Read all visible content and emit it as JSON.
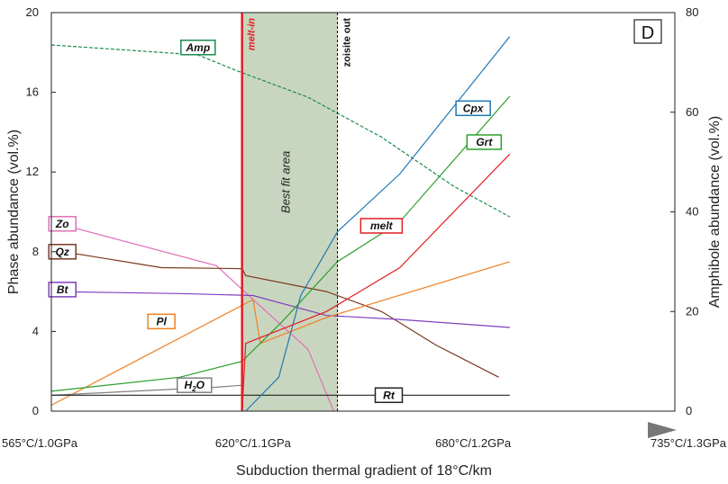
{
  "chart_data": {
    "type": "line",
    "panel_label": "D",
    "xlabel": "Subduction thermal gradient of 18°C/km",
    "x_ticks": [
      "565°C/1.0GPa",
      "620°C/1.1GPa",
      "680°C/1.2GPa",
      "735°C/1.3GPa"
    ],
    "x_tick_temps": [
      565,
      620,
      680,
      735
    ],
    "xlim": [
      565,
      735
    ],
    "ylabel_left": "Phase abundance (vol.%)",
    "ylim_left": [
      0,
      20
    ],
    "yticks_left": [
      0,
      4,
      8,
      12,
      16,
      20
    ],
    "ylabel_right": "Amphibole abundance (vol.%)",
    "ylim_right": [
      0,
      80
    ],
    "yticks_right": [
      0,
      20,
      40,
      60,
      80
    ],
    "annotations": {
      "melt_in": {
        "label": "melt-in",
        "x": 617,
        "color": "#e31e24"
      },
      "zoisite_out": {
        "label": "zoisite out",
        "x": 643
      },
      "best_fit": {
        "label": "Best fit area",
        "x_range": [
          617,
          643
        ],
        "color": "#c9d6bf"
      }
    },
    "series": [
      {
        "name": "Amp",
        "axis": "right",
        "style": "dashed",
        "color": "#1e8a4e",
        "label_at": [
          605,
          73
        ],
        "points": [
          [
            565,
            73.5
          ],
          [
            585,
            72.5
          ],
          [
            605,
            71.5
          ],
          [
            615,
            68.5
          ],
          [
            635,
            63
          ],
          [
            655,
            55
          ],
          [
            675,
            45
          ],
          [
            690,
            39
          ]
        ]
      },
      {
        "name": "Zo",
        "axis": "left",
        "color": "#e070b8",
        "label_at": [
          568,
          9.4
        ],
        "points": [
          [
            565,
            9.5
          ],
          [
            610,
            7.3
          ],
          [
            620,
            5.6
          ],
          [
            635,
            3.1
          ],
          [
            642,
            0
          ]
        ]
      },
      {
        "name": "Qz",
        "axis": "left",
        "color": "#7b3a22",
        "label_at": [
          568,
          8.0
        ],
        "points": [
          [
            565,
            8.1
          ],
          [
            595,
            7.2
          ],
          [
            617,
            7.15
          ],
          [
            618,
            6.8
          ],
          [
            640,
            6.0
          ],
          [
            655,
            5.0
          ],
          [
            670,
            3.3
          ],
          [
            687,
            1.7
          ]
        ]
      },
      {
        "name": "Bt",
        "axis": "left",
        "color": "#7f3fbf",
        "label_at": [
          568,
          6.1
        ],
        "points": [
          [
            565,
            6.0
          ],
          [
            600,
            5.9
          ],
          [
            620,
            5.8
          ],
          [
            640,
            4.8
          ],
          [
            660,
            4.6
          ],
          [
            690,
            4.2
          ]
        ]
      },
      {
        "name": "Pl",
        "axis": "left",
        "color": "#f07f1e",
        "label_at": [
          595,
          4.5
        ],
        "points": [
          [
            565,
            0.3
          ],
          [
            620,
            5.6
          ],
          [
            622,
            3.4
          ],
          [
            640,
            4.7
          ],
          [
            690,
            7.5
          ]
        ]
      },
      {
        "name": "H2O",
        "axis": "left",
        "color": "#808080",
        "label_at": [
          604,
          1.3
        ],
        "points": [
          [
            565,
            0.8
          ],
          [
            610,
            1.2
          ],
          [
            617,
            1.3
          ]
        ]
      },
      {
        "name": "Rt",
        "axis": "left",
        "color": "#222222",
        "label_at": [
          657,
          0.8
        ],
        "points": [
          [
            565,
            0.8
          ],
          [
            690,
            0.8
          ]
        ]
      },
      {
        "name": "Cpx",
        "axis": "left",
        "color": "#1f78b4",
        "label_at": [
          680,
          15.2
        ],
        "points": [
          [
            618,
            0
          ],
          [
            627,
            1.7
          ],
          [
            633,
            5.8
          ],
          [
            643,
            9.0
          ],
          [
            660,
            11.9
          ],
          [
            690,
            18.8
          ]
        ]
      },
      {
        "name": "Grt",
        "axis": "left",
        "color": "#2ca02c",
        "label_at": [
          683,
          13.5
        ],
        "points": [
          [
            565,
            1.0
          ],
          [
            600,
            1.7
          ],
          [
            617,
            2.5
          ],
          [
            628,
            4.5
          ],
          [
            643,
            7.5
          ],
          [
            660,
            9.5
          ],
          [
            690,
            15.8
          ]
        ]
      },
      {
        "name": "melt",
        "axis": "left",
        "color": "#e31e24",
        "label_at": [
          655,
          9.3
        ],
        "points": [
          [
            617,
            0
          ],
          [
            618,
            3.4
          ],
          [
            640,
            5.0
          ],
          [
            660,
            7.2
          ],
          [
            690,
            12.9
          ]
        ]
      }
    ]
  }
}
